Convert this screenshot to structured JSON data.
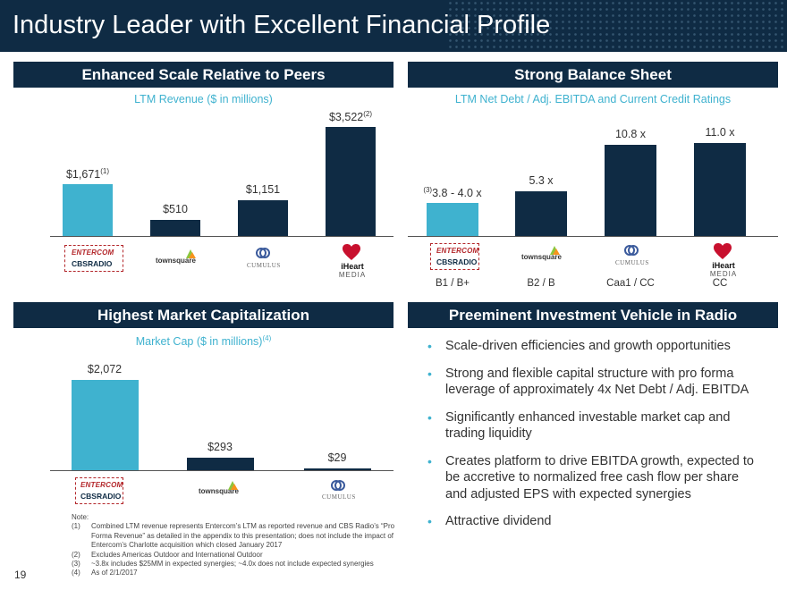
{
  "title": "Industry Leader with Excellent Financial Profile",
  "page_number": "19",
  "panels": {
    "scale": {
      "heading": "Enhanced Scale Relative to Peers",
      "subtitle": "LTM Revenue ($ in millions)"
    },
    "balance": {
      "heading": "Strong Balance Sheet",
      "subtitle": "LTM Net Debt / Adj. EBITDA and Current Credit Ratings"
    },
    "marketcap": {
      "heading": "Highest Market Capitalization",
      "subtitle": "Market Cap ($ in millions)",
      "subtitle_sup": "(4)"
    },
    "vehicle": {
      "heading": "Preeminent Investment Vehicle in Radio",
      "bullets": [
        "Scale-driven efficiencies and growth opportunities",
        "Strong and flexible capital structure with pro forma leverage of approximately 4x Net Debt / Adj. EBITDA",
        "Significantly enhanced investable market cap and trading liquidity",
        "Creates platform to drive EBITDA growth, expected to be accretive to normalized free cash flow per share and adjusted EPS with expected synergies",
        "Attractive dividend"
      ]
    }
  },
  "logos": {
    "entercom": "ENTERCOM",
    "cbsradio": "CBSRADIO",
    "townsquare": "townsquare",
    "cumulus": "CUMULUS",
    "iheart": "iHeart",
    "iheart_media": "MEDIA"
  },
  "colors": {
    "navy": "#0f2b44",
    "accent": "#3fb2cf"
  },
  "chart_data": [
    {
      "type": "bar",
      "title": "LTM Revenue ($ in millions)",
      "categories": [
        "Entercom / CBS Radio",
        "Townsquare",
        "Cumulus",
        "iHeartMedia"
      ],
      "values": [
        1671,
        510,
        1151,
        3522
      ],
      "labels": [
        "$1,671",
        "$510",
        "$1,151",
        "$3,522"
      ],
      "label_notes": [
        "(1)",
        "",
        "",
        "(2)"
      ],
      "ylim": [
        0,
        3522
      ]
    },
    {
      "type": "bar",
      "title": "LTM Net Debt / Adj. EBITDA and Current Credit Ratings",
      "categories": [
        "Entercom / CBS Radio",
        "Townsquare",
        "Cumulus",
        "iHeartMedia"
      ],
      "values": [
        3.9,
        5.3,
        10.8,
        11.0
      ],
      "labels": [
        "3.8 - 4.0 x",
        "5.3 x",
        "10.8 x",
        "11.0 x"
      ],
      "label_notes": [
        "(3)",
        "",
        "",
        ""
      ],
      "ratings": [
        "B1 / B+",
        "B2 / B",
        "Caa1 / CC",
        "CC"
      ],
      "ylim": [
        0,
        11.0
      ]
    },
    {
      "type": "bar",
      "title": "Market Cap ($ in millions)",
      "categories": [
        "Entercom / CBS Radio",
        "Townsquare",
        "Cumulus"
      ],
      "values": [
        2072,
        293,
        29
      ],
      "labels": [
        "$2,072",
        "$293",
        "$29"
      ],
      "ylim": [
        0,
        2072
      ]
    }
  ],
  "notes": {
    "label": "Note:",
    "items": [
      {
        "num": "(1)",
        "text": "Combined LTM revenue represents Entercom’s LTM as reported revenue and CBS Radio’s “Pro Forma Revenue” as detailed in the appendix to this presentation; does not include the impact of Entercom’s Charlotte acquisition which closed January 2017"
      },
      {
        "num": "(2)",
        "text": "Excludes Americas Outdoor and International Outdoor"
      },
      {
        "num": "(3)",
        "text": "~3.8x includes $25MM in expected synergies; ~4.0x does not include expected synergies"
      },
      {
        "num": "(4)",
        "text": "As of 2/1/2017"
      }
    ]
  }
}
